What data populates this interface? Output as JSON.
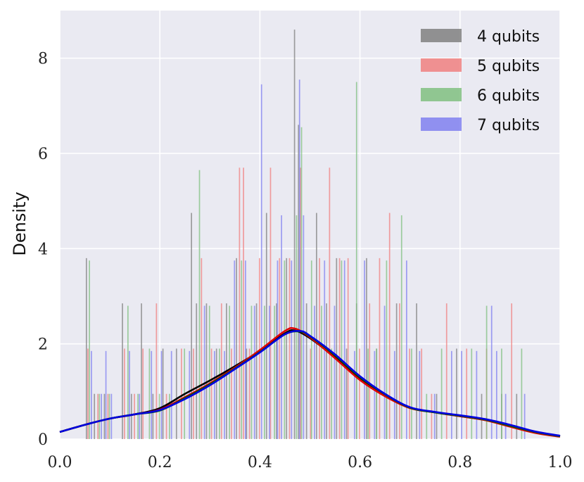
{
  "chart_data": {
    "type": "bar",
    "subtype": "histogram with kde",
    "xlabel": "",
    "ylabel": "Density",
    "xlim": [
      0.0,
      1.0
    ],
    "ylim": [
      0,
      9
    ],
    "x_ticks": [
      "0.0",
      "0.2",
      "0.4",
      "0.6",
      "0.8",
      "1.0"
    ],
    "x_tick_values": [
      0.0,
      0.2,
      0.4,
      0.6,
      0.8,
      1.0
    ],
    "y_ticks": [
      "0",
      "2",
      "4",
      "6",
      "8"
    ],
    "y_tick_values": [
      0,
      2,
      4,
      6,
      8
    ],
    "grid": true,
    "legend_position": "top-right",
    "bin_width": 0.0024,
    "series": [
      {
        "name": "4 qubits",
        "color": "#808080",
        "kde_color": "#000000",
        "bins": [
          [
            0.052,
            3.8
          ],
          [
            0.068,
            0.95
          ],
          [
            0.088,
            0.95
          ],
          [
            0.124,
            2.85
          ],
          [
            0.142,
            0.95
          ],
          [
            0.162,
            2.85
          ],
          [
            0.185,
            0.95
          ],
          [
            0.205,
            1.9
          ],
          [
            0.232,
            1.9
          ],
          [
            0.262,
            4.75
          ],
          [
            0.272,
            2.85
          ],
          [
            0.292,
            2.85
          ],
          [
            0.312,
            1.9
          ],
          [
            0.332,
            2.85
          ],
          [
            0.352,
            3.8
          ],
          [
            0.372,
            1.9
          ],
          [
            0.392,
            2.85
          ],
          [
            0.412,
            4.75
          ],
          [
            0.432,
            2.85
          ],
          [
            0.452,
            3.8
          ],
          [
            0.468,
            8.6
          ],
          [
            0.476,
            6.6
          ],
          [
            0.492,
            2.85
          ],
          [
            0.512,
            4.75
          ],
          [
            0.532,
            2.85
          ],
          [
            0.552,
            3.8
          ],
          [
            0.572,
            1.9
          ],
          [
            0.592,
            2.85
          ],
          [
            0.612,
            3.8
          ],
          [
            0.632,
            1.9
          ],
          [
            0.652,
            0.95
          ],
          [
            0.672,
            2.85
          ],
          [
            0.712,
            2.85
          ],
          [
            0.752,
            0.95
          ],
          [
            0.792,
            1.9
          ],
          [
            0.842,
            0.95
          ],
          [
            0.882,
            0.95
          ],
          [
            0.912,
            0.95
          ]
        ],
        "kde": [
          [
            0.0,
            0.15
          ],
          [
            0.05,
            0.3
          ],
          [
            0.1,
            0.43
          ],
          [
            0.15,
            0.52
          ],
          [
            0.2,
            0.65
          ],
          [
            0.25,
            0.95
          ],
          [
            0.3,
            1.23
          ],
          [
            0.35,
            1.53
          ],
          [
            0.4,
            1.85
          ],
          [
            0.45,
            2.22
          ],
          [
            0.47,
            2.28
          ],
          [
            0.5,
            2.12
          ],
          [
            0.55,
            1.72
          ],
          [
            0.6,
            1.28
          ],
          [
            0.65,
            0.93
          ],
          [
            0.7,
            0.66
          ],
          [
            0.75,
            0.56
          ],
          [
            0.8,
            0.48
          ],
          [
            0.85,
            0.4
          ],
          [
            0.9,
            0.27
          ],
          [
            0.95,
            0.14
          ],
          [
            1.0,
            0.06
          ]
        ]
      },
      {
        "name": "5 qubits",
        "color": "#f08080",
        "kde_color": "#e00000",
        "bins": [
          [
            0.055,
            1.9
          ],
          [
            0.075,
            0.95
          ],
          [
            0.095,
            0.95
          ],
          [
            0.128,
            1.9
          ],
          [
            0.148,
            0.95
          ],
          [
            0.165,
            1.9
          ],
          [
            0.192,
            2.85
          ],
          [
            0.212,
            0.95
          ],
          [
            0.242,
            1.9
          ],
          [
            0.266,
            1.9
          ],
          [
            0.282,
            3.8
          ],
          [
            0.302,
            1.9
          ],
          [
            0.322,
            2.85
          ],
          [
            0.342,
            1.9
          ],
          [
            0.358,
            5.7
          ],
          [
            0.366,
            5.7
          ],
          [
            0.378,
            1.9
          ],
          [
            0.398,
            3.8
          ],
          [
            0.42,
            5.7
          ],
          [
            0.438,
            3.8
          ],
          [
            0.458,
            3.8
          ],
          [
            0.48,
            5.7
          ],
          [
            0.5,
            1.9
          ],
          [
            0.518,
            3.8
          ],
          [
            0.538,
            5.7
          ],
          [
            0.558,
            3.8
          ],
          [
            0.575,
            3.8
          ],
          [
            0.598,
            1.9
          ],
          [
            0.618,
            2.85
          ],
          [
            0.638,
            3.8
          ],
          [
            0.658,
            4.75
          ],
          [
            0.678,
            2.85
          ],
          [
            0.698,
            1.9
          ],
          [
            0.722,
            1.9
          ],
          [
            0.742,
            0.95
          ],
          [
            0.772,
            2.85
          ],
          [
            0.812,
            1.9
          ],
          [
            0.852,
            1.9
          ],
          [
            0.902,
            2.85
          ]
        ],
        "kde": [
          [
            0.0,
            0.15
          ],
          [
            0.05,
            0.3
          ],
          [
            0.1,
            0.43
          ],
          [
            0.15,
            0.52
          ],
          [
            0.2,
            0.62
          ],
          [
            0.25,
            0.88
          ],
          [
            0.3,
            1.17
          ],
          [
            0.35,
            1.5
          ],
          [
            0.4,
            1.87
          ],
          [
            0.45,
            2.27
          ],
          [
            0.47,
            2.32
          ],
          [
            0.5,
            2.14
          ],
          [
            0.55,
            1.7
          ],
          [
            0.6,
            1.24
          ],
          [
            0.65,
            0.9
          ],
          [
            0.7,
            0.65
          ],
          [
            0.75,
            0.56
          ],
          [
            0.8,
            0.48
          ],
          [
            0.85,
            0.4
          ],
          [
            0.9,
            0.26
          ],
          [
            0.95,
            0.13
          ],
          [
            1.0,
            0.05
          ]
        ]
      },
      {
        "name": "6 qubits",
        "color": "#80c080",
        "kde_color": "#006000",
        "bins": [
          [
            0.058,
            3.75
          ],
          [
            0.078,
            0.95
          ],
          [
            0.098,
            0.95
          ],
          [
            0.135,
            2.8
          ],
          [
            0.155,
            0.95
          ],
          [
            0.178,
            1.9
          ],
          [
            0.198,
            0.95
          ],
          [
            0.218,
            0.95
          ],
          [
            0.248,
            1.9
          ],
          [
            0.278,
            5.65
          ],
          [
            0.298,
            2.8
          ],
          [
            0.318,
            1.9
          ],
          [
            0.338,
            2.8
          ],
          [
            0.362,
            3.75
          ],
          [
            0.382,
            2.8
          ],
          [
            0.408,
            2.8
          ],
          [
            0.428,
            2.8
          ],
          [
            0.448,
            3.75
          ],
          [
            0.472,
            4.7
          ],
          [
            0.482,
            6.55
          ],
          [
            0.502,
            3.75
          ],
          [
            0.522,
            2.8
          ],
          [
            0.542,
            1.9
          ],
          [
            0.562,
            3.75
          ],
          [
            0.592,
            7.5
          ],
          [
            0.615,
            1.9
          ],
          [
            0.632,
            1.9
          ],
          [
            0.652,
            3.75
          ],
          [
            0.682,
            4.7
          ],
          [
            0.702,
            1.9
          ],
          [
            0.732,
            0.95
          ],
          [
            0.762,
            1.9
          ],
          [
            0.822,
            1.9
          ],
          [
            0.852,
            2.8
          ],
          [
            0.882,
            1.9
          ],
          [
            0.922,
            1.9
          ]
        ],
        "kde": [
          [
            0.0,
            0.15
          ],
          [
            0.05,
            0.3
          ],
          [
            0.1,
            0.43
          ],
          [
            0.15,
            0.52
          ],
          [
            0.2,
            0.6
          ],
          [
            0.25,
            0.86
          ],
          [
            0.3,
            1.15
          ],
          [
            0.35,
            1.48
          ],
          [
            0.4,
            1.83
          ],
          [
            0.45,
            2.2
          ],
          [
            0.48,
            2.26
          ],
          [
            0.5,
            2.16
          ],
          [
            0.55,
            1.76
          ],
          [
            0.6,
            1.3
          ],
          [
            0.65,
            0.94
          ],
          [
            0.7,
            0.66
          ],
          [
            0.75,
            0.56
          ],
          [
            0.8,
            0.49
          ],
          [
            0.85,
            0.41
          ],
          [
            0.9,
            0.28
          ],
          [
            0.95,
            0.15
          ],
          [
            1.0,
            0.06
          ]
        ]
      },
      {
        "name": "7 qubits",
        "color": "#8080f0",
        "kde_color": "#0000e0",
        "bins": [
          [
            0.062,
            1.85
          ],
          [
            0.082,
            0.95
          ],
          [
            0.091,
            1.85
          ],
          [
            0.102,
            0.95
          ],
          [
            0.138,
            1.85
          ],
          [
            0.158,
            0.95
          ],
          [
            0.182,
            1.85
          ],
          [
            0.202,
            1.85
          ],
          [
            0.222,
            1.85
          ],
          [
            0.258,
            1.85
          ],
          [
            0.288,
            2.8
          ],
          [
            0.308,
            1.85
          ],
          [
            0.328,
            1.85
          ],
          [
            0.348,
            3.75
          ],
          [
            0.37,
            3.75
          ],
          [
            0.388,
            2.8
          ],
          [
            0.402,
            7.45
          ],
          [
            0.418,
            2.8
          ],
          [
            0.434,
            3.75
          ],
          [
            0.442,
            4.7
          ],
          [
            0.462,
            3.75
          ],
          [
            0.478,
            7.55
          ],
          [
            0.486,
            4.7
          ],
          [
            0.508,
            2.8
          ],
          [
            0.528,
            3.75
          ],
          [
            0.548,
            2.8
          ],
          [
            0.568,
            3.75
          ],
          [
            0.588,
            1.85
          ],
          [
            0.608,
            3.75
          ],
          [
            0.628,
            1.85
          ],
          [
            0.648,
            2.8
          ],
          [
            0.668,
            1.85
          ],
          [
            0.692,
            3.75
          ],
          [
            0.718,
            1.85
          ],
          [
            0.748,
            0.95
          ],
          [
            0.782,
            1.85
          ],
          [
            0.802,
            1.85
          ],
          [
            0.832,
            1.85
          ],
          [
            0.862,
            2.8
          ],
          [
            0.872,
            1.85
          ],
          [
            0.89,
            0.95
          ],
          [
            0.928,
            0.95
          ]
        ],
        "kde": [
          [
            0.0,
            0.15
          ],
          [
            0.05,
            0.3
          ],
          [
            0.1,
            0.43
          ],
          [
            0.15,
            0.52
          ],
          [
            0.2,
            0.61
          ],
          [
            0.25,
            0.84
          ],
          [
            0.3,
            1.13
          ],
          [
            0.35,
            1.47
          ],
          [
            0.4,
            1.82
          ],
          [
            0.45,
            2.2
          ],
          [
            0.48,
            2.27
          ],
          [
            0.5,
            2.17
          ],
          [
            0.55,
            1.78
          ],
          [
            0.6,
            1.32
          ],
          [
            0.65,
            0.95
          ],
          [
            0.7,
            0.67
          ],
          [
            0.75,
            0.57
          ],
          [
            0.8,
            0.5
          ],
          [
            0.85,
            0.42
          ],
          [
            0.9,
            0.3
          ],
          [
            0.95,
            0.16
          ],
          [
            1.0,
            0.07
          ]
        ]
      }
    ]
  }
}
